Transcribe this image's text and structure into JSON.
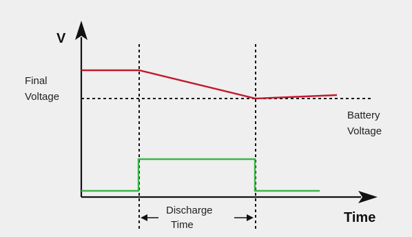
{
  "labels": {
    "y_axis": "V",
    "x_axis": "Time",
    "final_voltage_line1": "Final",
    "final_voltage_line2": "Voltage",
    "battery_voltage_line1": "Battery",
    "battery_voltage_line2": "Voltage",
    "discharge_line1": "Discharge",
    "discharge_line2": "Time"
  },
  "colors": {
    "background": "#efefef",
    "voltage_curve": "#c0192b",
    "discharge_pulse": "#3cb54a",
    "axes": "#111111"
  }
}
